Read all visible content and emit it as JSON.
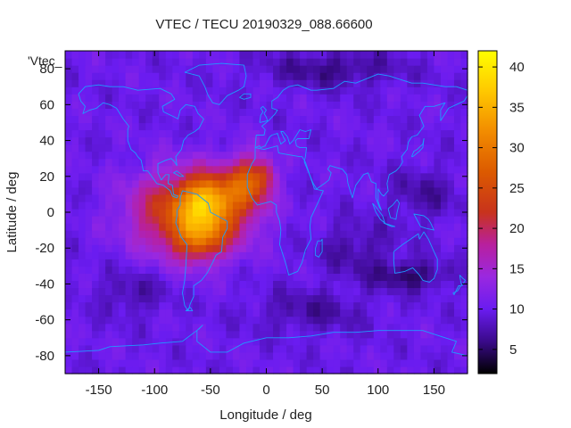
{
  "chart_data": {
    "type": "heatmap",
    "title": "VTEC / TECU 20190329_088.66600",
    "xlabel": "Longitude / deg",
    "ylabel": "Latitude / deg",
    "legend_entry": "'Vtec_",
    "xlim": [
      -180,
      180
    ],
    "ylim": [
      -90,
      90
    ],
    "xticks": [
      -150,
      -100,
      -50,
      0,
      50,
      100,
      150
    ],
    "yticks": [
      -80,
      -60,
      -40,
      -20,
      0,
      20,
      40,
      60,
      80
    ],
    "colorbar": {
      "range": [
        2,
        42
      ],
      "ticks": [
        5,
        10,
        15,
        20,
        25,
        30,
        35,
        40
      ],
      "stops": [
        {
          "v": 2,
          "color": "#000000"
        },
        {
          "v": 6,
          "color": "#3a0a8a"
        },
        {
          "v": 10,
          "color": "#6a1cf0"
        },
        {
          "v": 14,
          "color": "#9a28e0"
        },
        {
          "v": 18,
          "color": "#b8209e"
        },
        {
          "v": 22,
          "color": "#c8331c"
        },
        {
          "v": 27,
          "color": "#dc5a00"
        },
        {
          "v": 32,
          "color": "#f28c00"
        },
        {
          "v": 37,
          "color": "#ffc800"
        },
        {
          "v": 42,
          "color": "#ffff00"
        }
      ]
    },
    "field": {
      "background": 10,
      "components": [
        {
          "lon": -70,
          "lat": 0,
          "amp": 17,
          "slon": 48,
          "slat": 22
        },
        {
          "lon": -60,
          "lat": -15,
          "amp": 10,
          "slon": 22,
          "slat": 12
        },
        {
          "lon": -55,
          "lat": 8,
          "amp": 9,
          "slon": 20,
          "slat": 12
        },
        {
          "lon": -15,
          "lat": 18,
          "amp": 13,
          "slon": 18,
          "slat": 14
        },
        {
          "lon": 0,
          "lat": 21,
          "amp": 6,
          "slon": 8,
          "slat": 8
        },
        {
          "lon": -40,
          "lat": 5,
          "amp": 7,
          "slon": 30,
          "slat": 18
        },
        {
          "lon": 130,
          "lat": -35,
          "amp": -5,
          "slon": 35,
          "slat": 8
        },
        {
          "lon": 140,
          "lat": 10,
          "amp": -3,
          "slon": 30,
          "slat": 15
        },
        {
          "lon": 80,
          "lat": -20,
          "amp": -3,
          "slon": 35,
          "slat": 15
        },
        {
          "lon": 60,
          "lat": 80,
          "amp": -4,
          "slon": 60,
          "slat": 10
        },
        {
          "lon": -120,
          "lat": -45,
          "amp": -3,
          "slon": 30,
          "slat": 12
        },
        {
          "lon": 40,
          "lat": -55,
          "amp": -3,
          "slon": 50,
          "slat": 12
        }
      ]
    }
  }
}
